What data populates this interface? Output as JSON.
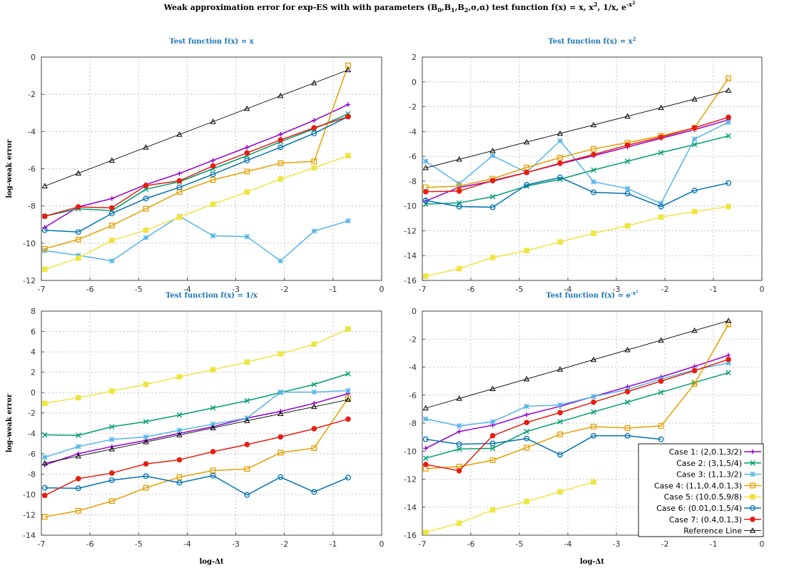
{
  "title_main": "Weak approximation error for exp-ES with with parameters (B",
  "title_rest": ") test function f(x) = x, x",
  "title_tail": ", 1/x, e",
  "title_sup": "-x",
  "title_sup2": "2",
  "colors": {
    "case1": "#9400d3",
    "case2": "#009e73",
    "case3": "#56b4e9",
    "case4": "#e69f00",
    "case5": "#f0e442",
    "case6": "#0072b2",
    "case7": "#e51e10",
    "reference": "#000000"
  },
  "legend": [
    {
      "label": "Case 1: (2,0.1,3/2)",
      "color": "#9400d3",
      "marker": "plus"
    },
    {
      "label": "Case 2: (3,1,5/4)",
      "color": "#009e73",
      "marker": "x"
    },
    {
      "label": "Case 3: (1,1,3/2)",
      "color": "#56b4e9",
      "marker": "star"
    },
    {
      "label": "Case 4: (1,1,0.4,0.1,3)",
      "color": "#e69f00",
      "marker": "square"
    },
    {
      "label": "Case 5: (10,0.5,9/8)",
      "color": "#f0e442",
      "marker": "square-filled"
    },
    {
      "label": "Case 6: (0.01,0.1,5/4)",
      "color": "#0072b2",
      "marker": "circle"
    },
    {
      "label": "Case 7: (0.4,0.1,3)",
      "color": "#e51e10",
      "marker": "circle-filled"
    },
    {
      "label": "Reference Line",
      "color": "#000000",
      "marker": "triangle"
    }
  ],
  "chart_data": [
    {
      "type": "line",
      "title": "Test function f(x) = x",
      "xlabel": "",
      "ylabel": "log-weak error",
      "xlim": [
        -7,
        0
      ],
      "ylim": [
        -12,
        0
      ],
      "xticks": [
        -7,
        -6,
        -5,
        -4,
        -3,
        -2,
        -1,
        0
      ],
      "yticks": [
        -12,
        -10,
        -8,
        -6,
        -4,
        -2,
        0
      ],
      "grid": true,
      "x": [
        -6.93,
        -6.24,
        -5.55,
        -4.85,
        -4.16,
        -3.47,
        -2.77,
        -2.08,
        -1.39,
        -0.69
      ],
      "series": [
        {
          "name": "Case 1: (2,0.1,3/2)",
          "values": [
            -9.15,
            -8.05,
            -7.6,
            -6.85,
            -6.25,
            -5.55,
            -4.85,
            -4.15,
            -3.4,
            -2.55
          ]
        },
        {
          "name": "Case 2: (3,1,5/4)",
          "values": [
            -8.55,
            -8.15,
            -8.25,
            -7.1,
            -6.7,
            -6.0,
            -5.3,
            -4.55,
            -3.85,
            -3.05
          ]
        },
        {
          "name": "Case 3: (1,1,3/2)",
          "values": [
            -10.4,
            -10.65,
            -10.95,
            -9.7,
            -8.55,
            -9.6,
            -9.65,
            -10.95,
            -9.35,
            -8.8
          ]
        },
        {
          "name": "Case 4: (1,1,0.4,0.1,3)",
          "values": [
            -10.3,
            -9.8,
            -9.05,
            -8.15,
            -7.25,
            -6.6,
            -6.15,
            -5.7,
            -5.6,
            -0.45
          ]
        },
        {
          "name": "Case 5: (10,0.5,9/8)",
          "values": [
            -11.4,
            -10.8,
            -9.85,
            -9.3,
            -8.6,
            -7.9,
            -7.25,
            -6.55,
            -5.95,
            -5.3
          ]
        },
        {
          "name": "Case 6: (0.01,0.1,5/4)",
          "values": [
            -9.3,
            -9.4,
            -8.4,
            -7.6,
            -7.0,
            -6.3,
            -5.55,
            -4.85,
            -4.1,
            -3.2
          ]
        },
        {
          "name": "Case 7: (0.4,0.1,3)",
          "values": [
            -8.55,
            -8.05,
            -8.1,
            -6.9,
            -6.65,
            -5.85,
            -5.15,
            -4.45,
            -3.8,
            -3.2
          ]
        },
        {
          "name": "Reference Line",
          "values": [
            -6.93,
            -6.24,
            -5.55,
            -4.85,
            -4.16,
            -3.47,
            -2.77,
            -2.08,
            -1.39,
            -0.69
          ]
        }
      ]
    },
    {
      "type": "line",
      "title": "Test function f(x) = x",
      "title_sup": "2",
      "xlabel": "",
      "ylabel": "",
      "xlim": [
        -7,
        0
      ],
      "ylim": [
        -16,
        2
      ],
      "xticks": [
        -7,
        -6,
        -5,
        -4,
        -3,
        -2,
        -1,
        0
      ],
      "yticks": [
        -16,
        -14,
        -12,
        -10,
        -8,
        -6,
        -4,
        -2,
        0,
        2
      ],
      "grid": true,
      "x": [
        -6.93,
        -6.24,
        -5.55,
        -4.85,
        -4.16,
        -3.47,
        -2.77,
        -2.08,
        -1.39,
        -0.69
      ],
      "series": [
        {
          "name": "Case 1: (2,0.1,3/2)",
          "values": [
            -9.6,
            -8.5,
            -8.0,
            -7.3,
            -6.6,
            -5.95,
            -5.25,
            -4.55,
            -3.85,
            -3.05
          ]
        },
        {
          "name": "Case 2: (3,1,5/4)",
          "values": [
            -9.85,
            -9.75,
            -9.25,
            -8.4,
            -7.85,
            -7.1,
            -6.4,
            -5.7,
            -5.05,
            -4.35
          ]
        },
        {
          "name": "Case 3: (1,1,3/2)",
          "values": [
            -6.4,
            -8.2,
            -5.95,
            -7.3,
            -4.75,
            -8.05,
            -8.6,
            -9.8,
            -4.6,
            -3.25
          ]
        },
        {
          "name": "Case 4: (1,1,0.4,0.1,3)",
          "values": [
            -8.5,
            -8.4,
            -7.8,
            -6.9,
            -6.1,
            -5.4,
            -4.9,
            -4.35,
            -3.7,
            0.3
          ]
        },
        {
          "name": "Case 5: (10,0.5,9/8)",
          "values": [
            -15.65,
            -15.05,
            -14.15,
            -13.6,
            -12.9,
            -12.2,
            -11.6,
            -10.9,
            -10.45,
            -10.05
          ]
        },
        {
          "name": "Case 6: (0.01,0.1,5/4)",
          "values": [
            -9.55,
            -10.05,
            -10.1,
            -8.3,
            -7.7,
            -8.9,
            -9.0,
            -10.05,
            -8.75,
            -8.15
          ]
        },
        {
          "name": "Case 7: (0.4,0.1,3)",
          "values": [
            -8.85,
            -8.8,
            -7.95,
            -7.3,
            -6.55,
            -5.85,
            -5.1,
            -4.45,
            -3.7,
            -2.85
          ]
        },
        {
          "name": "Reference Line",
          "values": [
            -6.93,
            -6.24,
            -5.55,
            -4.85,
            -4.16,
            -3.47,
            -2.77,
            -2.08,
            -1.39,
            -0.69
          ]
        }
      ]
    },
    {
      "type": "line",
      "title": "Test function f(x) = 1/x",
      "xlabel": "log-Δt",
      "ylabel": "log-weak error",
      "xlim": [
        -7,
        0
      ],
      "ylim": [
        -14,
        8
      ],
      "xticks": [
        -7,
        -6,
        -5,
        -4,
        -3,
        -2,
        -1,
        0
      ],
      "yticks": [
        -14,
        -12,
        -10,
        -8,
        -6,
        -4,
        -2,
        0,
        2,
        4,
        6,
        8
      ],
      "grid": true,
      "x": [
        -6.93,
        -6.24,
        -5.55,
        -4.85,
        -4.16,
        -3.47,
        -2.77,
        -2.08,
        -1.39,
        -0.69
      ],
      "series": [
        {
          "name": "Case 1: (2,0.1,3/2)",
          "values": [
            -7.1,
            -6.0,
            -5.3,
            -4.7,
            -4.0,
            -3.35,
            -2.5,
            -1.85,
            -1.05,
            -0.1
          ]
        },
        {
          "name": "Case 2: (3,1,5/4)",
          "values": [
            -4.15,
            -4.2,
            -3.35,
            -2.85,
            -2.2,
            -1.5,
            -0.8,
            0.0,
            0.8,
            1.85
          ]
        },
        {
          "name": "Case 3: (1,1,3/2)",
          "values": [
            -6.35,
            -5.3,
            -4.6,
            -4.35,
            -3.7,
            -3.1,
            -2.5,
            0.05,
            0.05,
            0.2
          ]
        },
        {
          "name": "Case 4: (1,1,0.4,0.1,3)",
          "values": [
            -12.2,
            -11.6,
            -10.65,
            -9.35,
            -8.3,
            -7.65,
            -7.5,
            -5.9,
            -5.45,
            -0.55
          ]
        },
        {
          "name": "Case 5: (10,0.5,9/8)",
          "values": [
            -1.05,
            -0.5,
            0.15,
            0.8,
            1.55,
            2.25,
            3.0,
            3.8,
            4.75,
            6.25
          ]
        },
        {
          "name": "Case 6: (0.01,0.1,5/4)",
          "values": [
            -9.35,
            -9.4,
            -8.6,
            -8.2,
            -8.85,
            -8.15,
            -10.05,
            -8.3,
            -9.75,
            -8.35
          ]
        },
        {
          "name": "Case 7: (0.4,0.1,3)",
          "values": [
            -10.1,
            -8.45,
            -7.9,
            -7.0,
            -6.6,
            -5.8,
            -5.1,
            -4.35,
            -3.55,
            -2.6
          ]
        },
        {
          "name": "Reference Line",
          "values": [
            -6.93,
            -6.24,
            -5.55,
            -4.85,
            -4.16,
            -3.47,
            -2.77,
            -2.08,
            -1.39,
            -0.69
          ]
        }
      ]
    },
    {
      "type": "line",
      "title": "Test function f(x) = e",
      "title_sup": "-x",
      "title_sup2": "2",
      "xlabel": "log-Δt",
      "ylabel": "",
      "xlim": [
        -7,
        0
      ],
      "ylim": [
        -16,
        0
      ],
      "xticks": [
        -7,
        -6,
        -5,
        -4,
        -3,
        -2,
        -1,
        0
      ],
      "yticks": [
        -16,
        -14,
        -12,
        -10,
        -8,
        -6,
        -4,
        -2,
        0
      ],
      "grid": true,
      "legend_position": "bottom-right",
      "x": [
        -6.93,
        -6.24,
        -5.55,
        -4.85,
        -4.16,
        -3.47,
        -2.77,
        -2.08,
        -1.39,
        -0.69
      ],
      "series": [
        {
          "name": "Case 1: (2,0.1,3/2)",
          "values": [
            -9.8,
            -8.6,
            -8.15,
            -7.4,
            -6.8,
            -6.1,
            -5.4,
            -4.7,
            -3.95,
            -3.15
          ]
        },
        {
          "name": "Case 2: (3,1,5/4)",
          "values": [
            -10.5,
            -9.85,
            -9.8,
            -8.6,
            -7.9,
            -7.2,
            -6.5,
            -5.8,
            -5.1,
            -4.4
          ]
        },
        {
          "name": "Case 3: (1,1,3/2)",
          "values": [
            -7.7,
            -8.2,
            -7.9,
            -6.8,
            -6.7,
            -6.1,
            -5.6,
            -4.85,
            -4.2,
            -3.7
          ]
        },
        {
          "name": "Case 4: (1,1,0.4,0.1,3)",
          "values": [
            -11.25,
            -11.1,
            -10.65,
            -9.75,
            -8.8,
            -8.25,
            -8.35,
            -8.2,
            -5.2,
            -0.95
          ]
        },
        {
          "name": "Case 5: (10,0.5,9/8)",
          "values": [
            -15.8,
            -15.15,
            -14.2,
            -13.6,
            -12.9,
            -12.2,
            null,
            null,
            null,
            null
          ]
        },
        {
          "name": "Case 6: (0.01,0.1,5/4)",
          "values": [
            -9.15,
            -9.5,
            -9.45,
            -9.1,
            -10.25,
            -8.9,
            -8.9,
            -9.15,
            null,
            null
          ]
        },
        {
          "name": "Case 7: (0.4,0.1,3)",
          "values": [
            -10.95,
            -11.4,
            -8.9,
            -7.95,
            -7.25,
            -6.5,
            -5.75,
            -5.0,
            -4.25,
            -3.45
          ]
        },
        {
          "name": "Reference Line",
          "values": [
            -6.93,
            -6.24,
            -5.55,
            -4.85,
            -4.16,
            -3.47,
            -2.77,
            -2.08,
            -1.39,
            -0.69
          ]
        }
      ]
    }
  ]
}
